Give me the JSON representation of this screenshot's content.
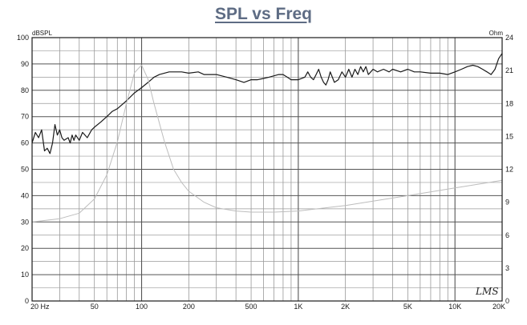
{
  "chart_data": {
    "type": "line",
    "title": "SPL vs Freq",
    "left_unit": "dBSPL",
    "right_unit": "Ohm",
    "x_scale": "log",
    "xlim": [
      20,
      20000
    ],
    "ylim": [
      0,
      100
    ],
    "y2lim": [
      0,
      24
    ],
    "grid": true,
    "x_ticks": [
      {
        "value": 20,
        "label": "20 Hz"
      },
      {
        "value": 50,
        "label": "50"
      },
      {
        "value": 100,
        "label": "100"
      },
      {
        "value": 200,
        "label": "200"
      },
      {
        "value": 500,
        "label": "500"
      },
      {
        "value": 1000,
        "label": "1K"
      },
      {
        "value": 2000,
        "label": "2K"
      },
      {
        "value": 5000,
        "label": "5K"
      },
      {
        "value": 10000,
        "label": "10K"
      },
      {
        "value": 20000,
        "label": "20K"
      }
    ],
    "y_ticks": [
      0,
      10,
      20,
      30,
      40,
      50,
      60,
      70,
      80,
      90,
      100
    ],
    "y2_ticks": [
      0,
      3,
      6,
      9,
      12,
      15,
      18,
      21,
      24
    ],
    "series": [
      {
        "axis": "left",
        "color": "#1a1a1a",
        "points": [
          [
            20,
            60
          ],
          [
            21,
            64
          ],
          [
            22,
            62
          ],
          [
            23,
            65
          ],
          [
            24,
            57
          ],
          [
            25,
            58
          ],
          [
            26,
            56
          ],
          [
            27,
            60
          ],
          [
            28,
            67
          ],
          [
            29,
            63
          ],
          [
            30,
            65
          ],
          [
            31,
            62
          ],
          [
            32,
            61
          ],
          [
            34,
            62
          ],
          [
            35,
            60
          ],
          [
            36,
            63
          ],
          [
            37,
            61
          ],
          [
            38,
            63
          ],
          [
            40,
            61
          ],
          [
            42,
            64
          ],
          [
            45,
            62
          ],
          [
            48,
            65
          ],
          [
            50,
            66
          ],
          [
            55,
            68
          ],
          [
            60,
            70
          ],
          [
            65,
            72
          ],
          [
            70,
            73
          ],
          [
            80,
            76
          ],
          [
            90,
            79
          ],
          [
            100,
            81
          ],
          [
            110,
            83
          ],
          [
            120,
            85
          ],
          [
            130,
            86
          ],
          [
            150,
            87
          ],
          [
            180,
            87
          ],
          [
            200,
            86.5
          ],
          [
            230,
            87
          ],
          [
            250,
            86
          ],
          [
            280,
            86
          ],
          [
            300,
            86
          ],
          [
            350,
            85
          ],
          [
            400,
            84
          ],
          [
            450,
            83
          ],
          [
            500,
            84
          ],
          [
            550,
            84
          ],
          [
            600,
            84.5
          ],
          [
            650,
            85
          ],
          [
            700,
            85.5
          ],
          [
            750,
            86
          ],
          [
            800,
            86
          ],
          [
            850,
            85
          ],
          [
            900,
            84
          ],
          [
            950,
            84
          ],
          [
            1000,
            84
          ],
          [
            1100,
            85
          ],
          [
            1150,
            87
          ],
          [
            1200,
            85
          ],
          [
            1250,
            84
          ],
          [
            1300,
            86
          ],
          [
            1350,
            88
          ],
          [
            1400,
            85
          ],
          [
            1450,
            83
          ],
          [
            1500,
            82
          ],
          [
            1550,
            84
          ],
          [
            1600,
            87
          ],
          [
            1650,
            85
          ],
          [
            1700,
            83
          ],
          [
            1800,
            84
          ],
          [
            1900,
            87
          ],
          [
            2000,
            85
          ],
          [
            2100,
            88
          ],
          [
            2200,
            85
          ],
          [
            2300,
            88
          ],
          [
            2400,
            86
          ],
          [
            2500,
            89
          ],
          [
            2600,
            87
          ],
          [
            2700,
            89
          ],
          [
            2800,
            86
          ],
          [
            2900,
            87
          ],
          [
            3000,
            88
          ],
          [
            3200,
            87
          ],
          [
            3500,
            88
          ],
          [
            3800,
            87
          ],
          [
            4000,
            88
          ],
          [
            4500,
            87
          ],
          [
            5000,
            88
          ],
          [
            5500,
            87
          ],
          [
            6000,
            87
          ],
          [
            7000,
            86.5
          ],
          [
            8000,
            86.5
          ],
          [
            9000,
            86
          ],
          [
            10000,
            87
          ],
          [
            11000,
            88
          ],
          [
            12000,
            89
          ],
          [
            13000,
            89.5
          ],
          [
            14000,
            89
          ],
          [
            15000,
            88
          ],
          [
            16000,
            87
          ],
          [
            17000,
            86
          ],
          [
            18000,
            88
          ],
          [
            19000,
            92
          ],
          [
            20000,
            94
          ]
        ]
      },
      {
        "axis": "right",
        "color": "#bdbdbd",
        "points": [
          [
            20,
            7.2
          ],
          [
            30,
            7.5
          ],
          [
            40,
            8
          ],
          [
            50,
            9.3
          ],
          [
            60,
            11.5
          ],
          [
            70,
            14.5
          ],
          [
            80,
            18
          ],
          [
            90,
            20.8
          ],
          [
            100,
            21.5
          ],
          [
            110,
            20.2
          ],
          [
            120,
            18
          ],
          [
            140,
            14.5
          ],
          [
            160,
            12
          ],
          [
            180,
            10.8
          ],
          [
            200,
            10
          ],
          [
            250,
            9
          ],
          [
            300,
            8.5
          ],
          [
            400,
            8.2
          ],
          [
            500,
            8.1
          ],
          [
            700,
            8.1
          ],
          [
            1000,
            8.2
          ],
          [
            2000,
            8.7
          ],
          [
            3000,
            9.1
          ],
          [
            5000,
            9.6
          ],
          [
            10000,
            10.3
          ],
          [
            15000,
            10.7
          ],
          [
            20000,
            11
          ]
        ]
      }
    ],
    "signature": "LMS"
  }
}
